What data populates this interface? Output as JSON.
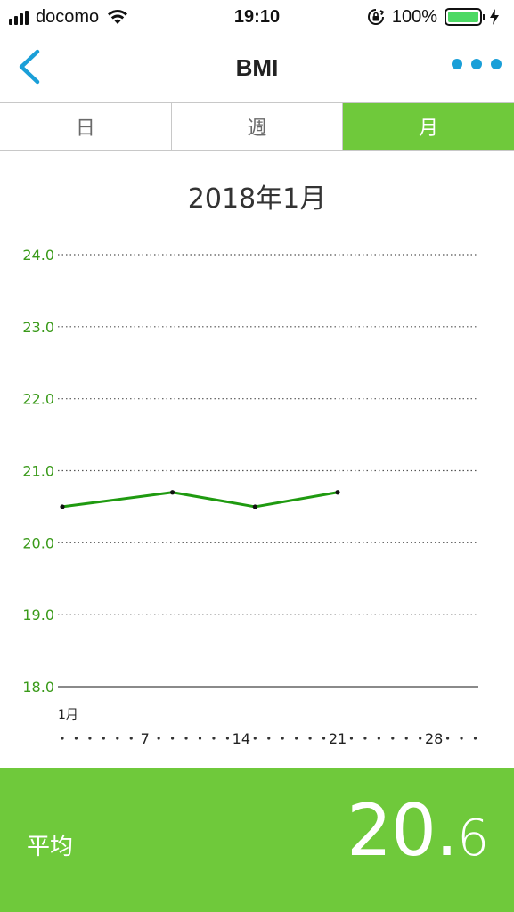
{
  "status_bar": {
    "carrier": "docomo",
    "time": "19:10",
    "battery_percent": "100%",
    "battery_level": 1.0
  },
  "nav": {
    "title": "BMI",
    "back_icon": "chevron-left-icon",
    "more_icon": "ellipsis-icon"
  },
  "tabs": [
    {
      "label": "日",
      "active": false
    },
    {
      "label": "週",
      "active": false
    },
    {
      "label": "月",
      "active": true
    }
  ],
  "colors": {
    "accent_green": "#6fc93b",
    "line_green": "#1f9a10",
    "axis_label_green": "#3a9a1a",
    "nav_blue": "#1a9fd8"
  },
  "chart_data": {
    "type": "line",
    "title": "2018年1月",
    "xlabel": "",
    "ylabel": "",
    "ylim": [
      18.0,
      24.0
    ],
    "y_ticks": [
      "24.0",
      "23.0",
      "22.0",
      "21.0",
      "20.0",
      "19.0",
      "18.0"
    ],
    "x_range": [
      1,
      31
    ],
    "x_month_label": "1月",
    "x_tick_labels": [
      {
        "day": 7,
        "label": "7"
      },
      {
        "day": 14,
        "label": "14"
      },
      {
        "day": 21,
        "label": "21"
      },
      {
        "day": 28,
        "label": "28"
      }
    ],
    "series": [
      {
        "x": [
          1,
          9,
          15,
          21
        ],
        "values": [
          20.5,
          20.7,
          20.5,
          20.7
        ]
      }
    ],
    "grid": true
  },
  "average": {
    "label": "平均",
    "value_int": "20.",
    "value_dec": "6"
  }
}
